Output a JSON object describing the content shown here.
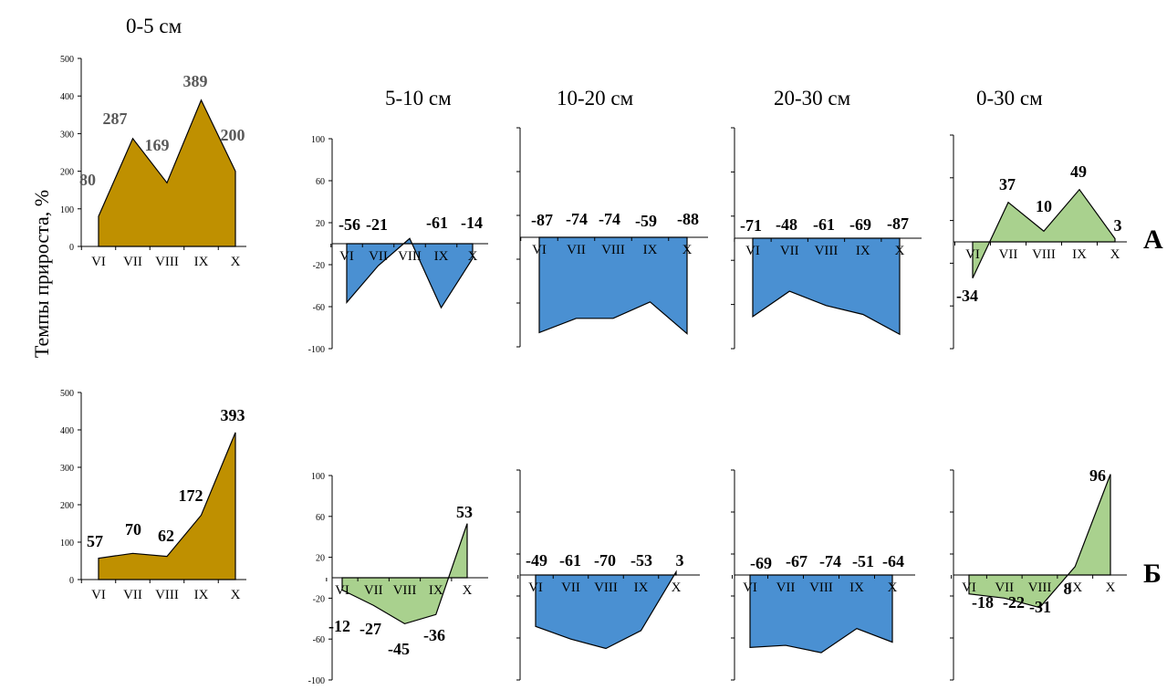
{
  "headers": {
    "h0_5": "0-5 см",
    "h5_10": "5-10 см",
    "h10_20": "10-20 см",
    "h20_30": "20-30 см",
    "h0_30": "0-30 см"
  },
  "y_axis_label": "Темпы прироста, %",
  "row_labels": {
    "A": "А",
    "B": "Б"
  },
  "colors": {
    "gold": "#BF9000",
    "blue": "#4A90D2",
    "green": "#A9D18E"
  },
  "chart_data": [
    {
      "type": "area",
      "row": "А",
      "depth": "0-5 см",
      "categories": [
        "VI",
        "VII",
        "VIII",
        "IX",
        "X"
      ],
      "values": [
        80,
        287,
        169,
        389,
        200
      ],
      "ylim": [
        0,
        500
      ],
      "yticks": [
        0,
        100,
        200,
        300,
        400,
        500
      ],
      "data_labels": [
        "80",
        "287",
        "169",
        "389",
        "200"
      ],
      "color": "gold"
    },
    {
      "type": "area",
      "row": "А",
      "depth": "5-10 см",
      "categories": [
        "VI",
        "VII",
        "VIII",
        "IX",
        "X"
      ],
      "values": [
        -56,
        -21,
        5,
        -61,
        -14
      ],
      "ylim": [
        -100,
        100
      ],
      "yticks": [
        -100,
        -60,
        -20,
        20,
        60,
        100
      ],
      "data_labels": [
        "-56",
        "-21",
        "",
        "-61",
        "-14"
      ],
      "color": "blue"
    },
    {
      "type": "area",
      "row": "А",
      "depth": "10-20 см",
      "categories": [
        "VI",
        "VII",
        "VIII",
        "IX",
        "X"
      ],
      "values": [
        -87,
        -74,
        -74,
        -59,
        -88
      ],
      "ylim": [
        -100,
        100
      ],
      "yticks": [],
      "data_labels": [
        "-87",
        "-74",
        "-74",
        "-59",
        "-88"
      ],
      "color": "blue"
    },
    {
      "type": "area",
      "row": "А",
      "depth": "20-30 см",
      "categories": [
        "VI",
        "VII",
        "VIII",
        "IX",
        "X"
      ],
      "values": [
        -71,
        -48,
        -61,
        -69,
        -87
      ],
      "ylim": [
        -100,
        100
      ],
      "yticks": [],
      "data_labels": [
        "-71",
        "-48",
        "-61",
        "-69",
        "-87"
      ],
      "color": "blue"
    },
    {
      "type": "area",
      "row": "А",
      "depth": "0-30 см",
      "categories": [
        "VI",
        "VII",
        "VIII",
        "IX",
        "X"
      ],
      "values": [
        -34,
        37,
        10,
        49,
        3
      ],
      "ylim": [
        -100,
        100
      ],
      "yticks": [],
      "data_labels": [
        "-34",
        "37",
        "10",
        "49",
        "3"
      ],
      "color": "green"
    },
    {
      "type": "area",
      "row": "Б",
      "depth": "0-5 см",
      "categories": [
        "VI",
        "VII",
        "VIII",
        "IX",
        "X"
      ],
      "values": [
        57,
        70,
        62,
        172,
        393
      ],
      "ylim": [
        0,
        500
      ],
      "yticks": [
        0,
        100,
        200,
        300,
        400,
        500
      ],
      "data_labels": [
        "57",
        "70",
        "62",
        "172",
        "393"
      ],
      "color": "gold"
    },
    {
      "type": "area",
      "row": "Б",
      "depth": "5-10 см",
      "categories": [
        "VI",
        "VII",
        "VIII",
        "IX",
        "X"
      ],
      "values": [
        -12,
        -27,
        -45,
        -36,
        53
      ],
      "ylim": [
        -100,
        100
      ],
      "yticks": [
        -100,
        -60,
        -20,
        20,
        60,
        100
      ],
      "data_labels": [
        "-12",
        "-27",
        "-45",
        "-36",
        "53"
      ],
      "color": "green"
    },
    {
      "type": "area",
      "row": "Б",
      "depth": "10-20 см",
      "categories": [
        "VI",
        "VII",
        "VIII",
        "IX",
        "X"
      ],
      "values": [
        -49,
        -61,
        -70,
        -53,
        3
      ],
      "ylim": [
        -100,
        100
      ],
      "yticks": [],
      "data_labels": [
        "-49",
        "-61",
        "-70",
        "-53",
        "3"
      ],
      "color": "blue"
    },
    {
      "type": "area",
      "row": "Б",
      "depth": "20-30 см",
      "categories": [
        "VI",
        "VII",
        "VIII",
        "IX",
        "X"
      ],
      "values": [
        -69,
        -67,
        -74,
        -51,
        -64
      ],
      "ylim": [
        -100,
        100
      ],
      "yticks": [],
      "data_labels": [
        "-69",
        "-67",
        "-74",
        "-51",
        "-64"
      ],
      "color": "blue"
    },
    {
      "type": "area",
      "row": "Б",
      "depth": "0-30 см",
      "categories": [
        "VI",
        "VII",
        "VIII",
        "IX",
        "X"
      ],
      "values": [
        -18,
        -22,
        -31,
        8,
        96
      ],
      "ylim": [
        -100,
        100
      ],
      "yticks": [],
      "data_labels": [
        "-18",
        "-22",
        "-31",
        "8",
        "96"
      ],
      "color": "green"
    }
  ]
}
